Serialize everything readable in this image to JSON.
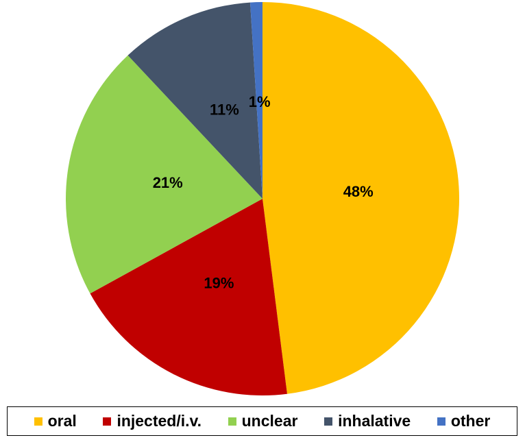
{
  "chart_data": {
    "type": "pie",
    "categories": [
      "oral",
      "injected/i.v.",
      "unclear",
      "inhalative",
      "other"
    ],
    "values": [
      48,
      19,
      21,
      11,
      1
    ],
    "value_labels": [
      "48%",
      "19%",
      "21%",
      "11%",
      "1%"
    ],
    "colors": [
      "#FFC000",
      "#C00000",
      "#92D050",
      "#44546A",
      "#4472C4"
    ]
  }
}
